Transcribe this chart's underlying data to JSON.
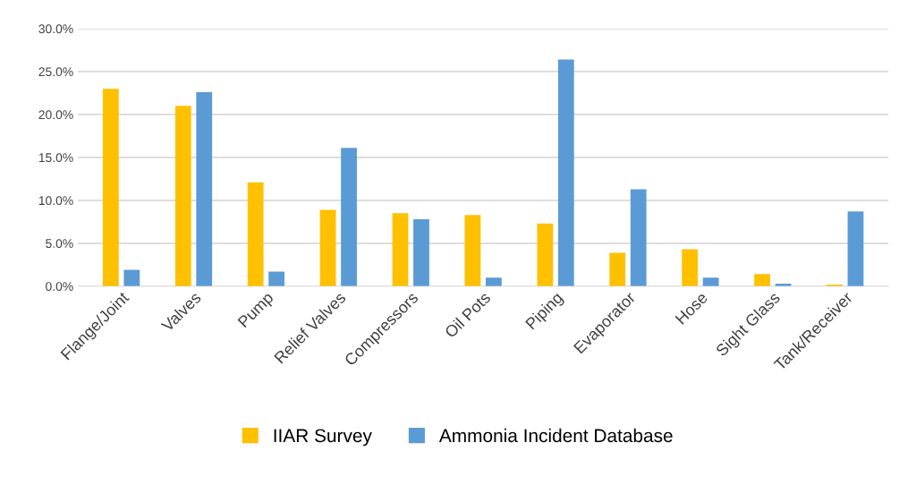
{
  "chart_data": {
    "type": "bar",
    "categories": [
      "Flange/Joint",
      "Valves",
      "Pump",
      "Relief Valves",
      "Compressors",
      "Oil Pots",
      "Piping",
      "Evaporator",
      "Hose",
      "Sight Glass",
      "Tank/Receiver"
    ],
    "series": [
      {
        "name": "IIAR Survey",
        "color": "#ffc000",
        "values": [
          23.0,
          21.0,
          12.1,
          8.9,
          8.5,
          8.3,
          7.3,
          3.9,
          4.3,
          1.4,
          0.2
        ]
      },
      {
        "name": "Ammonia Incident Database",
        "color": "#5b9bd5",
        "values": [
          1.9,
          22.6,
          1.7,
          16.1,
          7.8,
          1.0,
          26.4,
          11.3,
          1.0,
          0.3,
          8.7
        ]
      }
    ],
    "ylim": [
      0,
      30
    ],
    "yticks": [
      {
        "value": 0,
        "label": "0.0%"
      },
      {
        "value": 5,
        "label": "5.0%"
      },
      {
        "value": 10,
        "label": "10.0%"
      },
      {
        "value": 15,
        "label": "15.0%"
      },
      {
        "value": 20,
        "label": "20.0%"
      },
      {
        "value": 25,
        "label": "25.0%"
      },
      {
        "value": 30,
        "label": "30.0%"
      }
    ],
    "grid": "y",
    "legend": "bottom"
  }
}
